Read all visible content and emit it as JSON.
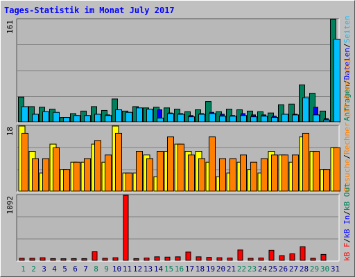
{
  "title": "Tages-Statistik im Monat July 2017",
  "colors": {
    "background": "#c0c0c0",
    "plot": "#b8b8b8",
    "title": "#0000ff",
    "hits": "#00805c",
    "files": "#00c0ff",
    "pages": "#0000ff",
    "visits": "#ffff00",
    "sites": "#ff8000",
    "kbytes": "#ff0000",
    "weekend_label": "#00805c",
    "weekday_label": "#000080"
  },
  "legend_top": [
    {
      "text": "Anfragen",
      "color": "#00805c"
    },
    {
      "text": "Dateien",
      "color": "#0000ff"
    },
    {
      "text": "Seiten",
      "color": "#00c0ff"
    }
  ],
  "legend_mid": [
    {
      "text": "Besuche",
      "color": "#ff8000"
    },
    {
      "text": "Rechner (IP-Adressen)",
      "color": "#ff8000"
    }
  ],
  "legend_bottom": [
    {
      "text": "kB F",
      "color": "#ff0000"
    },
    {
      "text": "kB In",
      "color": "#0000ff"
    },
    {
      "text": "kB Out",
      "color": "#00805c"
    }
  ],
  "chart_data": [
    {
      "type": "bar",
      "panel": "top",
      "ymax_label": "161",
      "ylim": [
        0,
        161
      ],
      "categories": [
        1,
        2,
        3,
        4,
        5,
        6,
        7,
        8,
        9,
        10,
        11,
        12,
        13,
        14,
        15,
        16,
        17,
        18,
        19,
        20,
        21,
        22,
        23,
        24,
        25,
        26,
        27,
        28,
        29,
        30,
        31
      ],
      "weekend_days": [
        1,
        2,
        8,
        9,
        15,
        16,
        22,
        23,
        29,
        30
      ],
      "series": [
        {
          "name": "Anfragen",
          "color": "#00805c",
          "values": [
            39,
            24,
            23,
            20,
            7,
            13,
            17,
            24,
            18,
            36,
            17,
            24,
            22,
            23,
            22,
            20,
            16,
            19,
            32,
            16,
            20,
            19,
            17,
            16,
            14,
            27,
            28,
            58,
            45,
            17,
            161
          ]
        },
        {
          "name": "Dateien",
          "color": "#0000ff",
          "values": [
            22,
            12,
            16,
            14,
            7,
            10,
            10,
            12,
            11,
            16,
            15,
            15,
            14,
            19,
            14,
            13,
            10,
            13,
            15,
            12,
            10,
            13,
            11,
            11,
            9,
            12,
            12,
            30,
            23,
            5,
            130
          ]
        },
        {
          "name": "Seiten",
          "color": "#00c0ff",
          "values": [
            24,
            12,
            16,
            15,
            7,
            10,
            10,
            12,
            10,
            19,
            15,
            22,
            20,
            6,
            13,
            12,
            8,
            12,
            13,
            9,
            9,
            10,
            8,
            9,
            7,
            12,
            11,
            38,
            11,
            3,
            130
          ]
        }
      ]
    },
    {
      "type": "bar",
      "panel": "middle",
      "ymax_label": "18",
      "ylim": [
        0,
        18
      ],
      "categories": [
        1,
        2,
        3,
        4,
        5,
        6,
        7,
        8,
        9,
        10,
        11,
        12,
        13,
        14,
        15,
        16,
        17,
        18,
        19,
        20,
        21,
        22,
        23,
        24,
        25,
        26,
        27,
        28,
        29,
        30,
        31
      ],
      "series": [
        {
          "name": "Besuche",
          "color": "#ffff00",
          "values": [
            18,
            11,
            5,
            13,
            6,
            8,
            8,
            13,
            8,
            18,
            5,
            5,
            10,
            4,
            11,
            13,
            11,
            11,
            8,
            4,
            5,
            8,
            6,
            5,
            11,
            10,
            8,
            15,
            11,
            6,
            12
          ]
        },
        {
          "name": "Rechner (IP-Adressen)",
          "color": "#ff8000",
          "values": [
            16,
            9,
            9,
            12,
            6,
            8,
            9,
            14,
            10,
            16,
            5,
            11,
            9,
            11,
            15,
            13,
            10,
            9,
            15,
            9,
            9,
            10,
            8,
            9,
            10,
            10,
            10,
            16,
            11,
            6,
            12
          ]
        }
      ]
    },
    {
      "type": "bar",
      "panel": "bottom",
      "ymax_label": "1092",
      "ylim": [
        0,
        1092
      ],
      "categories": [
        1,
        2,
        3,
        4,
        5,
        6,
        7,
        8,
        9,
        10,
        11,
        12,
        13,
        14,
        15,
        16,
        17,
        18,
        19,
        20,
        21,
        22,
        23,
        24,
        25,
        26,
        27,
        28,
        29,
        30,
        31
      ],
      "series": [
        {
          "name": "kB F",
          "color": "#ff0000",
          "values": [
            35,
            35,
            45,
            30,
            28,
            30,
            30,
            145,
            35,
            45,
            1092,
            30,
            40,
            60,
            55,
            60,
            140,
            60,
            50,
            45,
            40,
            175,
            35,
            40,
            170,
            80,
            110,
            230,
            35,
            100,
            0
          ]
        }
      ]
    }
  ]
}
